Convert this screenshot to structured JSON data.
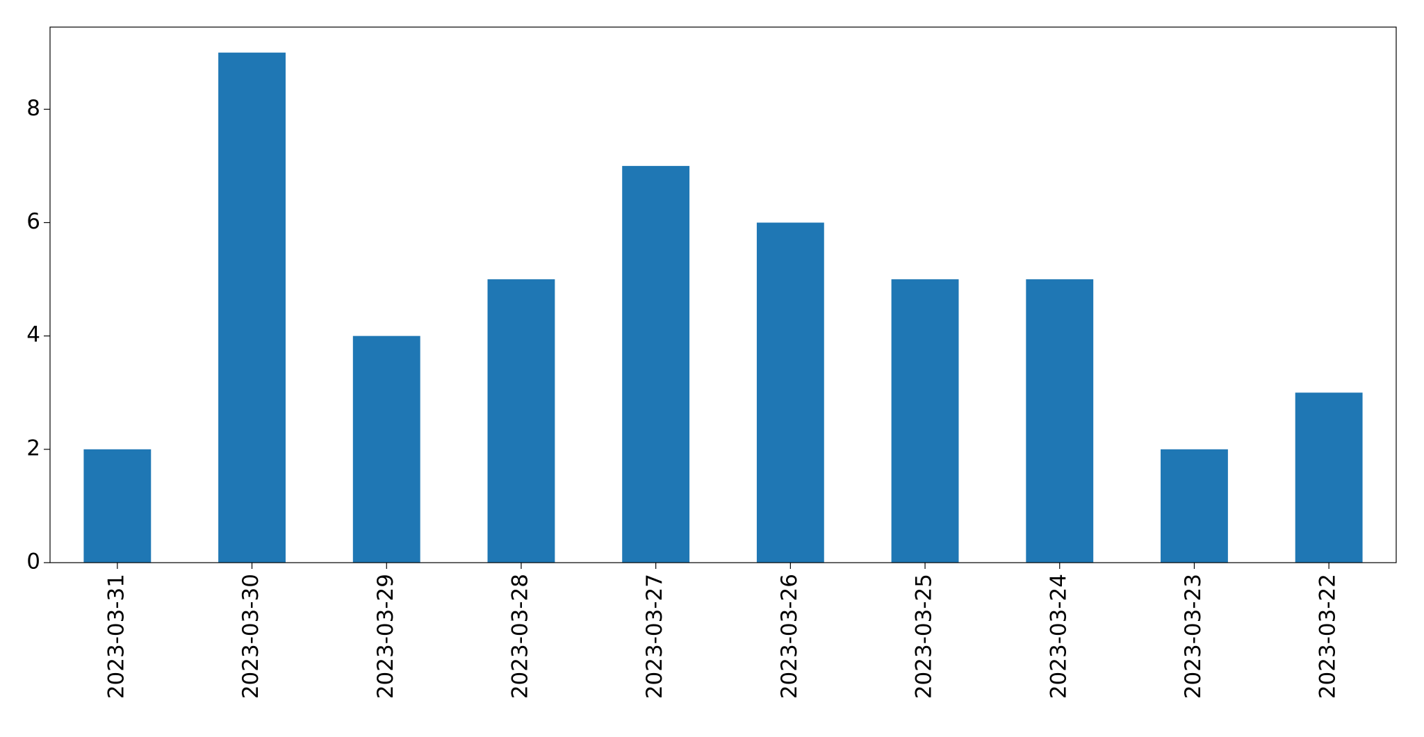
{
  "chart_data": {
    "type": "bar",
    "categories": [
      "2023-03-31",
      "2023-03-30",
      "2023-03-29",
      "2023-03-28",
      "2023-03-27",
      "2023-03-26",
      "2023-03-25",
      "2023-03-24",
      "2023-03-23",
      "2023-03-22"
    ],
    "values": [
      2,
      9,
      4,
      5,
      7,
      6,
      5,
      5,
      2,
      3
    ],
    "color": "#1f77b4",
    "ylim": [
      0,
      9.45
    ],
    "yticks": [
      0,
      2,
      4,
      6,
      8
    ],
    "grid": false
  }
}
